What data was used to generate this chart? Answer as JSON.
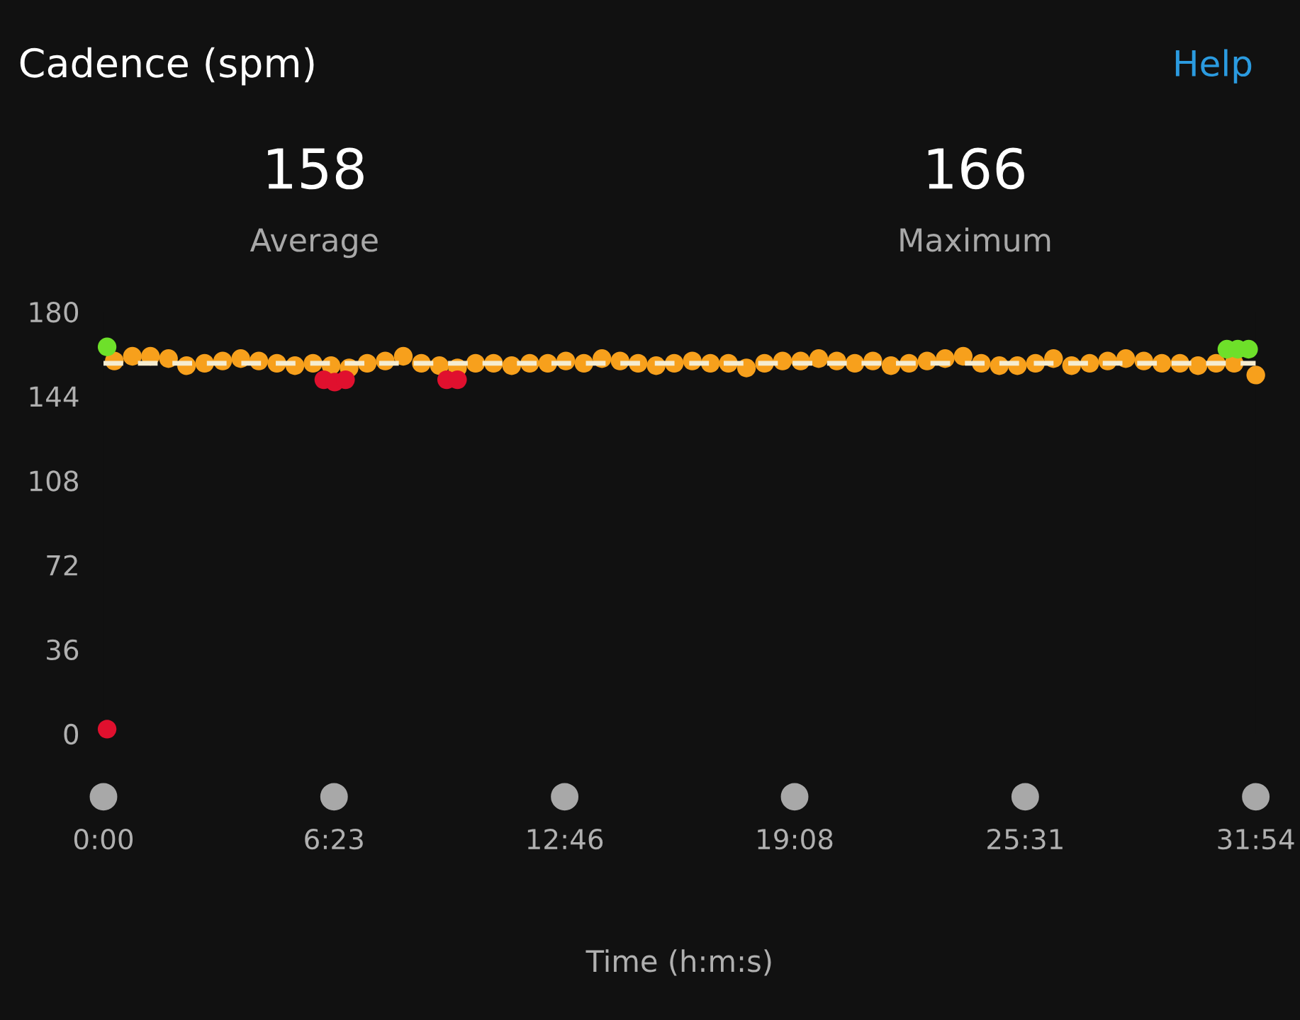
{
  "chart_data": {
    "type": "scatter",
    "title": "Cadence (spm)",
    "xlabel": "Time (h:m:s)",
    "annotations": [
      "Help",
      "158",
      "Average",
      "166",
      "Maximum"
    ],
    "xlim": [
      0,
      31.9
    ],
    "ylim": [
      0,
      180
    ],
    "xticks": [
      {
        "value": 0,
        "label": "0:00"
      },
      {
        "value": 6.383,
        "label": "6:23"
      },
      {
        "value": 12.767,
        "label": "12:46"
      },
      {
        "value": 19.133,
        "label": "19:08"
      },
      {
        "value": 25.517,
        "label": "25:31"
      },
      {
        "value": 31.9,
        "label": "31:54"
      }
    ],
    "yticks": [
      0,
      36,
      72,
      108,
      144,
      180
    ],
    "grid": false,
    "marker": "circle",
    "ref_lines": [
      {
        "axis": "y",
        "value": 158,
        "color": "#f5ecd0",
        "line_style": "dashed"
      }
    ],
    "series": [
      {
        "color": "#f7a01c",
        "x": [
          0.3,
          0.8,
          1.3,
          1.8,
          2.3,
          2.8,
          3.3,
          3.8,
          4.3,
          4.8,
          5.3,
          5.8,
          6.3,
          6.8,
          7.3,
          7.8,
          8.3,
          8.8,
          9.3,
          9.8,
          10.3,
          10.8,
          11.3,
          11.8,
          12.3,
          12.8,
          13.3,
          13.8,
          14.3,
          14.8,
          15.3,
          15.8,
          16.3,
          16.8,
          17.3,
          17.8,
          18.3,
          18.8,
          19.3,
          19.8,
          20.3,
          20.8,
          21.3,
          21.8,
          22.3,
          22.8,
          23.3,
          23.8,
          24.3,
          24.8,
          25.3,
          25.8,
          26.3,
          26.8,
          27.3,
          27.8,
          28.3,
          28.8,
          29.3,
          29.8,
          30.3,
          30.8,
          31.3,
          31.9
        ],
        "values": [
          159,
          161,
          161,
          160,
          157,
          158,
          159,
          160,
          159,
          158,
          157,
          158,
          157,
          156,
          158,
          159,
          161,
          158,
          157,
          156,
          158,
          158,
          157,
          158,
          158,
          159,
          158,
          160,
          159,
          158,
          157,
          158,
          159,
          158,
          158,
          156,
          158,
          159,
          159,
          160,
          159,
          158,
          159,
          157,
          158,
          159,
          160,
          161,
          158,
          157,
          157,
          158,
          160,
          157,
          158,
          159,
          160,
          159,
          158,
          158,
          157,
          158,
          158,
          153
        ]
      },
      {
        "color": "#e0102e",
        "x": [
          0.1,
          6.1,
          6.4,
          6.7,
          9.5,
          9.8
        ],
        "values": [
          2,
          151,
          150,
          151,
          151,
          151
        ]
      },
      {
        "color": "#6ee02a",
        "x": [
          0.1,
          31.1,
          31.4,
          31.7
        ],
        "values": [
          165,
          164,
          164,
          164
        ]
      }
    ]
  }
}
